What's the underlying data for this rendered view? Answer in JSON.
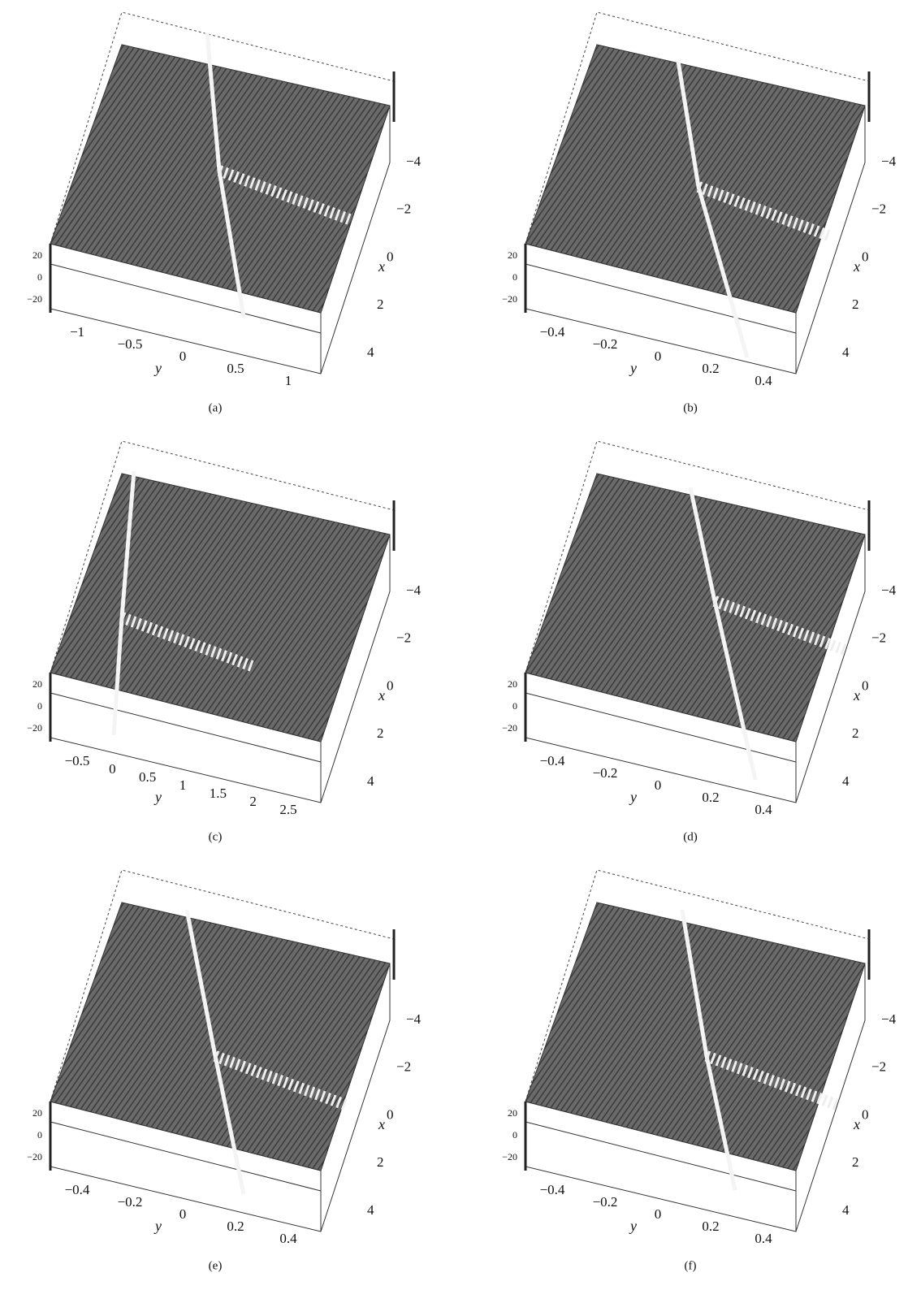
{
  "panels": [
    {
      "caption": "(a)",
      "z_ticks": [
        "20",
        "0",
        "−20"
      ],
      "y_axis_label": "y",
      "y_ticks": [
        "−1",
        "−0.5",
        "0",
        "0.5",
        "1"
      ],
      "x_axis_label": "x",
      "x_ticks": [
        "−4",
        "−2",
        "0",
        "2",
        "4"
      ]
    },
    {
      "caption": "(b)",
      "z_ticks": [
        "20",
        "0",
        "−20"
      ],
      "y_axis_label": "y",
      "y_ticks": [
        "−0.4",
        "−0.2",
        "0",
        "0.2",
        "0.4"
      ],
      "x_axis_label": "x",
      "x_ticks": [
        "−4",
        "−2",
        "0",
        "2",
        "4"
      ]
    },
    {
      "caption": "(c)",
      "z_ticks": [
        "20",
        "0",
        "−20"
      ],
      "y_axis_label": "y",
      "y_ticks": [
        "−0.5",
        "0",
        "0.5",
        "1",
        "1.5",
        "2",
        "2.5"
      ],
      "x_axis_label": "x",
      "x_ticks": [
        "−4",
        "−2",
        "0",
        "2",
        "4"
      ]
    },
    {
      "caption": "(d)",
      "z_ticks": [
        "20",
        "0",
        "−20"
      ],
      "y_axis_label": "y",
      "y_ticks": [
        "−0.4",
        "−0.2",
        "0",
        "0.2",
        "0.4"
      ],
      "x_axis_label": "x",
      "x_ticks": [
        "−4",
        "−2",
        "0",
        "2",
        "4"
      ]
    },
    {
      "caption": "(e)",
      "z_ticks": [
        "20",
        "0",
        "−20"
      ],
      "y_axis_label": "y",
      "y_ticks": [
        "−0.4",
        "−0.2",
        "0",
        "0.2",
        "0.4"
      ],
      "x_axis_label": "x",
      "x_ticks": [
        "−4",
        "−2",
        "0",
        "2",
        "4"
      ]
    },
    {
      "caption": "(f)",
      "z_ticks": [
        "20",
        "0",
        "−20"
      ],
      "y_axis_label": "y",
      "y_ticks": [
        "−0.4",
        "−0.2",
        "0",
        "0.2",
        "0.4"
      ],
      "x_axis_label": "x",
      "x_ticks": [
        "−4",
        "−2",
        "0",
        "2",
        "4"
      ]
    }
  ]
}
